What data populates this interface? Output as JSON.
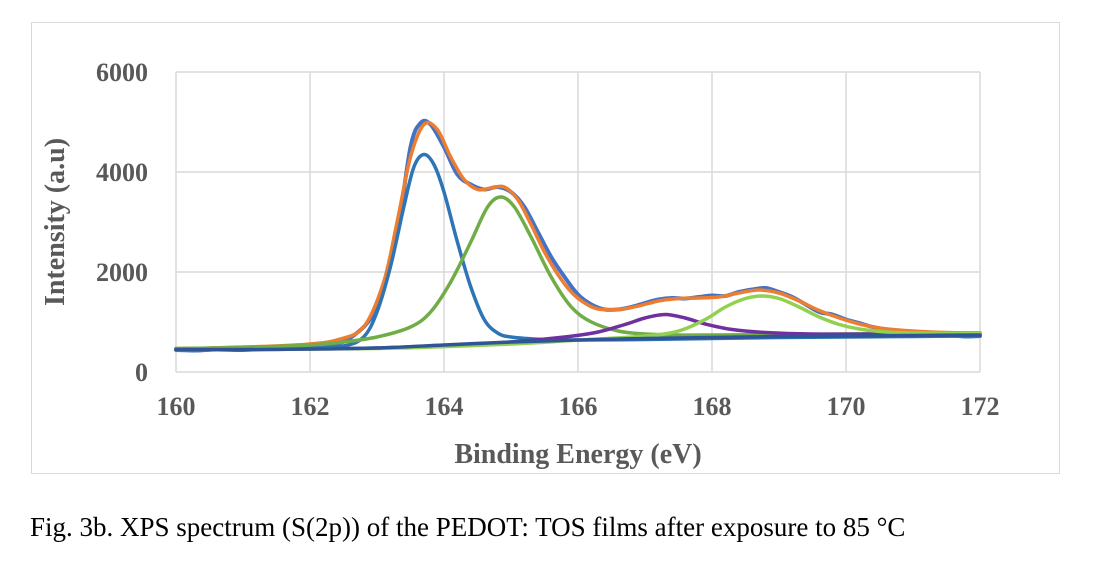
{
  "caption": "Fig. 3b. XPS spectrum (S(2p)) of the PEDOT: TOS films after exposure to 85 °C",
  "chart_data": {
    "type": "line",
    "xlabel": "Binding Energy (eV)",
    "ylabel": "Intensity (a.u)",
    "xlim": [
      160,
      172
    ],
    "ylim": [
      0,
      6000
    ],
    "x_ticks": [
      160,
      162,
      164,
      166,
      168,
      170,
      172
    ],
    "y_ticks": [
      0,
      2000,
      4000,
      6000
    ],
    "grid": true,
    "legend": "none",
    "series": [
      {
        "color": "#4472c4",
        "style": "raw",
        "points": [
          [
            160,
            440
          ],
          [
            160.3,
            430
          ],
          [
            160.6,
            450
          ],
          [
            161,
            440
          ],
          [
            161.4,
            470
          ],
          [
            161.8,
            490
          ],
          [
            162.2,
            520
          ],
          [
            162.6,
            680
          ],
          [
            163,
            1300
          ],
          [
            163.3,
            2800
          ],
          [
            163.5,
            4500
          ],
          [
            163.65,
            4980
          ],
          [
            163.8,
            4950
          ],
          [
            164,
            4500
          ],
          [
            164.2,
            3950
          ],
          [
            164.4,
            3750
          ],
          [
            164.6,
            3650
          ],
          [
            164.8,
            3700
          ],
          [
            165,
            3600
          ],
          [
            165.2,
            3300
          ],
          [
            165.4,
            2800
          ],
          [
            165.6,
            2300
          ],
          [
            165.8,
            1900
          ],
          [
            166,
            1550
          ],
          [
            166.2,
            1350
          ],
          [
            166.4,
            1250
          ],
          [
            166.6,
            1250
          ],
          [
            166.8,
            1300
          ],
          [
            167,
            1380
          ],
          [
            167.2,
            1450
          ],
          [
            167.4,
            1480
          ],
          [
            167.6,
            1470
          ],
          [
            167.8,
            1500
          ],
          [
            168,
            1530
          ],
          [
            168.2,
            1520
          ],
          [
            168.4,
            1600
          ],
          [
            168.6,
            1650
          ],
          [
            168.8,
            1680
          ],
          [
            169,
            1600
          ],
          [
            169.2,
            1500
          ],
          [
            169.4,
            1350
          ],
          [
            169.6,
            1200
          ],
          [
            169.8,
            1150
          ],
          [
            170,
            1050
          ],
          [
            170.2,
            980
          ],
          [
            170.4,
            900
          ],
          [
            170.7,
            830
          ],
          [
            171,
            790
          ],
          [
            171.3,
            760
          ],
          [
            171.6,
            730
          ],
          [
            171.8,
            710
          ],
          [
            172,
            720
          ]
        ]
      },
      {
        "color": "#ed7d31",
        "style": "fit",
        "points": [
          [
            160,
            470
          ],
          [
            160.5,
            480
          ],
          [
            161,
            500
          ],
          [
            161.5,
            520
          ],
          [
            162,
            560
          ],
          [
            162.4,
            640
          ],
          [
            162.8,
            900
          ],
          [
            163.1,
            1800
          ],
          [
            163.3,
            3000
          ],
          [
            163.5,
            4300
          ],
          [
            163.7,
            4950
          ],
          [
            163.9,
            4850
          ],
          [
            164.1,
            4300
          ],
          [
            164.3,
            3850
          ],
          [
            164.5,
            3650
          ],
          [
            164.7,
            3680
          ],
          [
            164.9,
            3700
          ],
          [
            165.1,
            3450
          ],
          [
            165.3,
            2950
          ],
          [
            165.5,
            2400
          ],
          [
            165.7,
            1950
          ],
          [
            165.9,
            1600
          ],
          [
            166.1,
            1380
          ],
          [
            166.3,
            1260
          ],
          [
            166.6,
            1250
          ],
          [
            166.9,
            1320
          ],
          [
            167.2,
            1420
          ],
          [
            167.5,
            1470
          ],
          [
            167.8,
            1480
          ],
          [
            168.1,
            1500
          ],
          [
            168.4,
            1580
          ],
          [
            168.7,
            1640
          ],
          [
            169,
            1580
          ],
          [
            169.3,
            1420
          ],
          [
            169.6,
            1230
          ],
          [
            169.9,
            1080
          ],
          [
            170.2,
            960
          ],
          [
            170.5,
            880
          ],
          [
            171,
            820
          ],
          [
            171.5,
            790
          ],
          [
            172,
            780
          ]
        ]
      },
      {
        "color": "#2e75b6",
        "style": "peak",
        "points": [
          [
            160,
            450
          ],
          [
            161,
            460
          ],
          [
            162,
            480
          ],
          [
            162.5,
            520
          ],
          [
            162.8,
            700
          ],
          [
            163,
            1200
          ],
          [
            163.2,
            2100
          ],
          [
            163.4,
            3300
          ],
          [
            163.55,
            4100
          ],
          [
            163.7,
            4350
          ],
          [
            163.85,
            4150
          ],
          [
            164,
            3600
          ],
          [
            164.2,
            2600
          ],
          [
            164.4,
            1700
          ],
          [
            164.6,
            1050
          ],
          [
            164.8,
            780
          ],
          [
            165,
            700
          ],
          [
            165.5,
            650
          ],
          [
            166,
            640
          ],
          [
            167,
            650
          ],
          [
            168,
            670
          ],
          [
            169,
            690
          ],
          [
            170,
            700
          ],
          [
            171,
            710
          ],
          [
            172,
            720
          ]
        ]
      },
      {
        "color": "#70ad47",
        "style": "peak",
        "points": [
          [
            160,
            470
          ],
          [
            161,
            490
          ],
          [
            162,
            540
          ],
          [
            162.5,
            600
          ],
          [
            163,
            700
          ],
          [
            163.5,
            900
          ],
          [
            163.8,
            1200
          ],
          [
            164.1,
            1800
          ],
          [
            164.4,
            2600
          ],
          [
            164.65,
            3300
          ],
          [
            164.85,
            3500
          ],
          [
            165.05,
            3300
          ],
          [
            165.3,
            2700
          ],
          [
            165.6,
            1900
          ],
          [
            165.9,
            1300
          ],
          [
            166.2,
            1000
          ],
          [
            166.6,
            820
          ],
          [
            167,
            760
          ],
          [
            167.5,
            740
          ],
          [
            168,
            740
          ],
          [
            169,
            750
          ],
          [
            170,
            760
          ],
          [
            171,
            770
          ],
          [
            172,
            780
          ]
        ]
      },
      {
        "color": "#7030a0",
        "style": "peak",
        "points": [
          [
            160,
            450
          ],
          [
            161,
            450
          ],
          [
            162,
            460
          ],
          [
            163,
            480
          ],
          [
            164,
            530
          ],
          [
            165,
            600
          ],
          [
            165.8,
            700
          ],
          [
            166.3,
            800
          ],
          [
            166.7,
            950
          ],
          [
            167,
            1080
          ],
          [
            167.3,
            1150
          ],
          [
            167.6,
            1080
          ],
          [
            167.9,
            960
          ],
          [
            168.3,
            850
          ],
          [
            168.8,
            790
          ],
          [
            169.5,
            760
          ],
          [
            170.5,
            760
          ],
          [
            172,
            760
          ]
        ]
      },
      {
        "color": "#92d050",
        "style": "peak",
        "points": [
          [
            160,
            450
          ],
          [
            163,
            470
          ],
          [
            165,
            560
          ],
          [
            166,
            640
          ],
          [
            167,
            720
          ],
          [
            167.5,
            820
          ],
          [
            167.9,
            1050
          ],
          [
            168.2,
            1300
          ],
          [
            168.5,
            1470
          ],
          [
            168.75,
            1520
          ],
          [
            169,
            1470
          ],
          [
            169.3,
            1300
          ],
          [
            169.6,
            1100
          ],
          [
            169.9,
            950
          ],
          [
            170.2,
            860
          ],
          [
            170.6,
            800
          ],
          [
            171,
            780
          ],
          [
            172,
            770
          ]
        ]
      },
      {
        "color": "#2f5597",
        "style": "baseline",
        "points": [
          [
            160,
            450
          ],
          [
            161,
            450
          ],
          [
            162,
            460
          ],
          [
            163,
            480
          ],
          [
            164,
            540
          ],
          [
            165,
            600
          ],
          [
            166,
            640
          ],
          [
            167,
            670
          ],
          [
            168,
            690
          ],
          [
            169,
            710
          ],
          [
            170,
            720
          ],
          [
            171,
            730
          ],
          [
            172,
            740
          ]
        ]
      }
    ]
  }
}
